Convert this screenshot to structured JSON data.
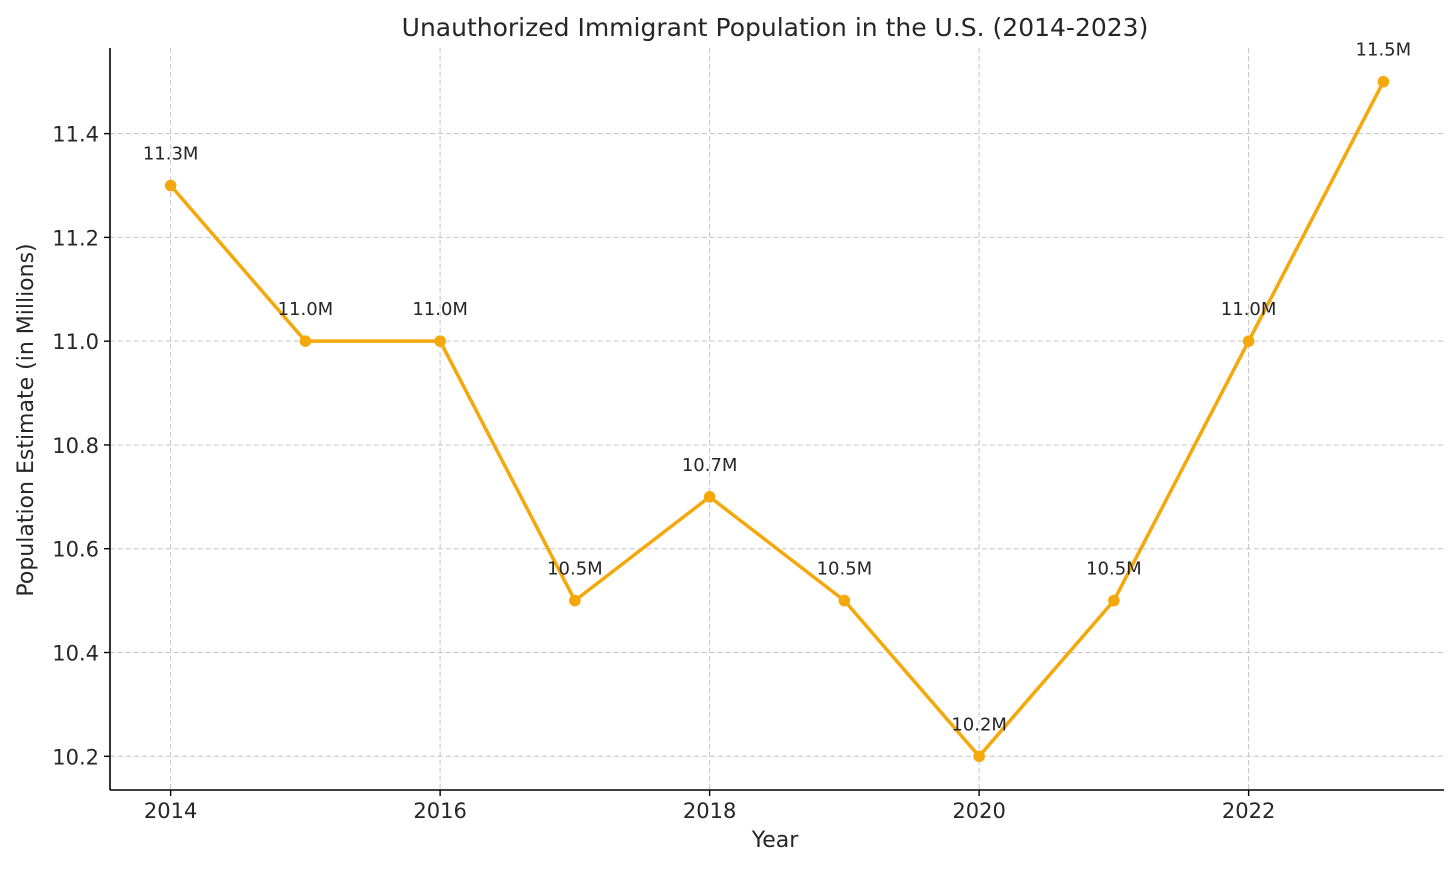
{
  "chart_data": {
    "type": "line",
    "title": "Unauthorized Immigrant Population in the U.S. (2014-2023)",
    "xlabel": "Year",
    "ylabel": "Population Estimate (in Millions)",
    "x": [
      2014,
      2015,
      2016,
      2017,
      2018,
      2019,
      2020,
      2021,
      2022,
      2023
    ],
    "series": [
      {
        "name": "Unauthorized Immigrant Population",
        "values": [
          11.3,
          11.0,
          11.0,
          10.5,
          10.7,
          10.5,
          10.2,
          10.5,
          11.0,
          11.5
        ],
        "labels": [
          "11.3M",
          "11.0M",
          "11.0M",
          "10.5M",
          "10.7M",
          "10.5M",
          "10.2M",
          "10.5M",
          "11.0M",
          "11.5M"
        ],
        "color": "#f5a80b"
      }
    ],
    "xlim": [
      2013.55,
      2023.45
    ],
    "ylim": [
      10.135,
      11.565
    ],
    "xticks": [
      2014,
      2016,
      2018,
      2020,
      2022
    ],
    "xtick_labels": [
      "2014",
      "2016",
      "2018",
      "2020",
      "2022"
    ],
    "yticks": [
      10.2,
      10.4,
      10.6,
      10.8,
      11.0,
      11.2,
      11.4
    ],
    "ytick_labels": [
      "10.2",
      "10.4",
      "10.6",
      "10.8",
      "11.0",
      "11.2",
      "11.4"
    ],
    "grid": true,
    "marker": "circle"
  }
}
